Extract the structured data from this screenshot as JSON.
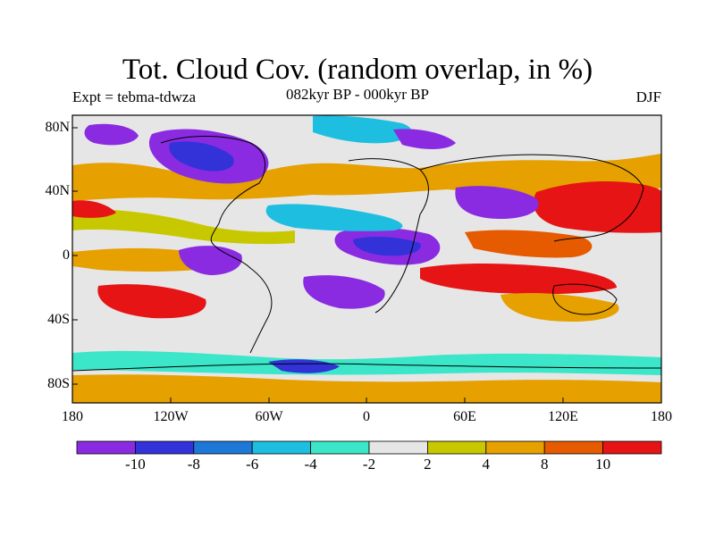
{
  "title": "Tot. Cloud Cov. (random overlap, in %)",
  "subtitle_left": "Expt = tebma-tdwza",
  "subtitle_center": "082kyr BP - 000kyr BP",
  "subtitle_right": "DJF",
  "y_axis_labels": [
    "80N",
    "40N",
    "0",
    "40S",
    "80S"
  ],
  "x_axis_labels": [
    "180",
    "120W",
    "60W",
    "0",
    "60E",
    "120E",
    "180"
  ],
  "colorbar": {
    "colors": [
      "#8a2be2",
      "#3232d8",
      "#1e78d8",
      "#1ebee0",
      "#3ce6c8",
      "#e6e6e6",
      "#c8c800",
      "#e6a000",
      "#e65a00",
      "#e61414"
    ],
    "labels": [
      "-10",
      "-8",
      "-6",
      "-4",
      "-2",
      "2",
      "4",
      "8",
      "10"
    ]
  },
  "legend_color_meaning": {
    "negative": "purple/blue/cyan",
    "near_zero": "light grey",
    "positive": "yellow/orange/red"
  }
}
